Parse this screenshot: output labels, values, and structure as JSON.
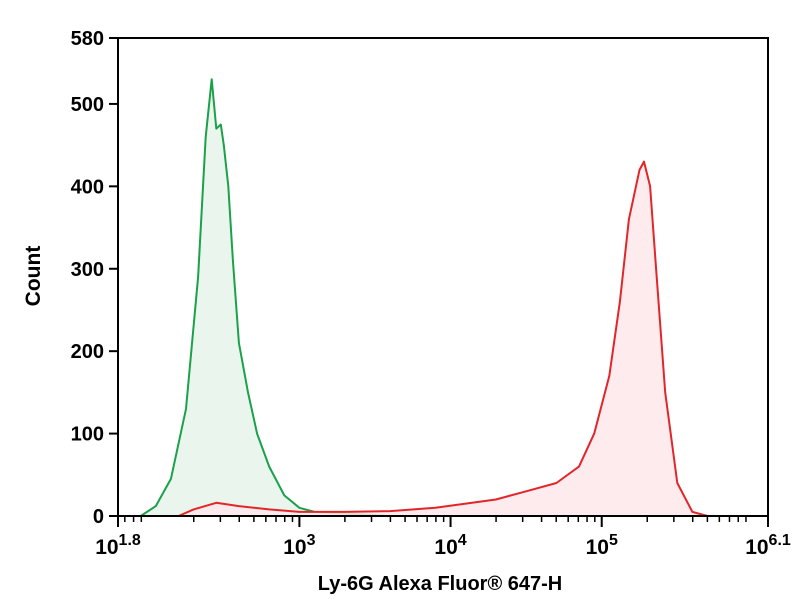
{
  "chart_data": {
    "type": "area",
    "xlabel": "Ly-6G Alexa Fluor® 647-H",
    "ylabel": "Count",
    "x_scale": "log10",
    "xlim": [
      1.8,
      6.1
    ],
    "ylim": [
      0,
      580
    ],
    "y_ticks": [
      0,
      100,
      200,
      300,
      400,
      500,
      580
    ],
    "x_ticks": [
      {
        "exp": 1.8,
        "base": "10",
        "sup": "1.8"
      },
      {
        "exp": 3,
        "base": "10",
        "sup": "3"
      },
      {
        "exp": 4,
        "base": "10",
        "sup": "4"
      },
      {
        "exp": 5,
        "base": "10",
        "sup": "5"
      },
      {
        "exp": 6.1,
        "base": "10",
        "sup": "6.1"
      }
    ],
    "grid": false,
    "series": [
      {
        "color": "#1aa14a",
        "fill": "#e6f4ea",
        "log10_x": [
          1.95,
          2.05,
          2.15,
          2.25,
          2.33,
          2.38,
          2.42,
          2.45,
          2.48,
          2.5,
          2.53,
          2.56,
          2.6,
          2.66,
          2.72,
          2.8,
          2.9,
          3.0,
          3.1,
          3.3,
          3.6
        ],
        "count": [
          0,
          12,
          45,
          130,
          290,
          460,
          530,
          470,
          475,
          450,
          400,
          310,
          210,
          150,
          100,
          60,
          25,
          10,
          5,
          3,
          0
        ]
      },
      {
        "color": "#e1262a",
        "fill": "#fde7ea",
        "log10_x": [
          2.2,
          2.3,
          2.45,
          2.6,
          2.8,
          3.0,
          3.3,
          3.6,
          3.9,
          4.1,
          4.3,
          4.5,
          4.7,
          4.85,
          4.95,
          5.05,
          5.12,
          5.18,
          5.25,
          5.28,
          5.32,
          5.36,
          5.42,
          5.5,
          5.6,
          5.7
        ],
        "count": [
          0,
          8,
          16,
          12,
          8,
          5,
          5,
          6,
          10,
          15,
          20,
          30,
          40,
          60,
          100,
          170,
          260,
          360,
          420,
          430,
          400,
          300,
          150,
          40,
          5,
          0
        ]
      }
    ]
  }
}
